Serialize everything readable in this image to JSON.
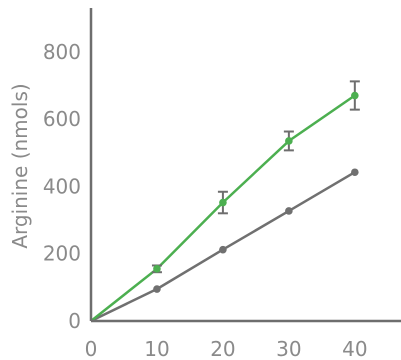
{
  "chart_data": {
    "type": "line",
    "title": "",
    "xlabel": "",
    "ylabel": "Arginine (nmols)",
    "x": [
      0,
      10,
      20,
      30,
      40
    ],
    "xlim": [
      0,
      47
    ],
    "ylim": [
      0,
      930
    ],
    "xticks": [
      0,
      10,
      20,
      30,
      40
    ],
    "yticks": [
      0,
      200,
      400,
      600,
      800
    ],
    "grid": false,
    "legend": "none",
    "series": [
      {
        "color": "#4caf50",
        "values": [
          0,
          155,
          352,
          535,
          670
        ],
        "error": [
          null,
          10,
          32,
          28,
          42
        ]
      },
      {
        "color": "#707070",
        "values": [
          0,
          95,
          212,
          327,
          442
        ],
        "error": [
          null,
          null,
          null,
          null,
          null
        ]
      }
    ]
  }
}
